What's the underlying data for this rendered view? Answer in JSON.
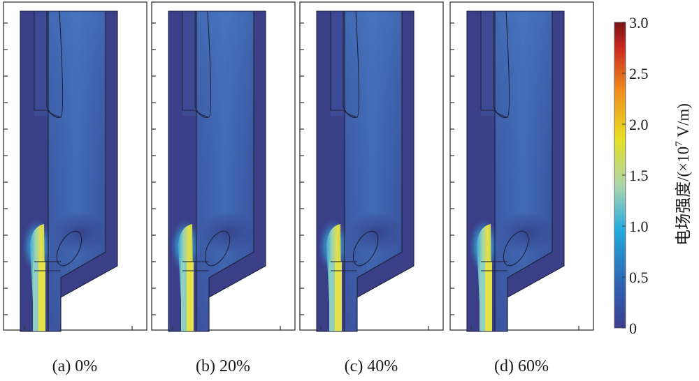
{
  "panels": [
    {
      "caption": "(a) 0%"
    },
    {
      "caption": "(b) 20%"
    },
    {
      "caption": "(c) 40%"
    },
    {
      "caption": "(d) 60%"
    }
  ],
  "colorbar": {
    "title_main": "电场强度/(×10",
    "title_sup": "7",
    "title_tail": " V/m)",
    "ticks": [
      "3.0",
      "2.5",
      "2.0",
      "1.5",
      "1.0",
      "0.5",
      "0"
    ],
    "tick_values": [
      3.0,
      2.5,
      2.0,
      1.5,
      1.0,
      0.5,
      0
    ],
    "range": [
      0,
      3.0
    ],
    "colors": [
      "#3b3f8e",
      "#2e62b5",
      "#22a9e0",
      "#a8d6b0",
      "#e8e023",
      "#f08a1f",
      "#c8281e",
      "#7a1414"
    ]
  },
  "colors": {
    "background_field": "#3a4f9a",
    "insulator": "#3b3f88",
    "hot_core": "#e4e24a",
    "glow": "#33b8e8"
  }
}
